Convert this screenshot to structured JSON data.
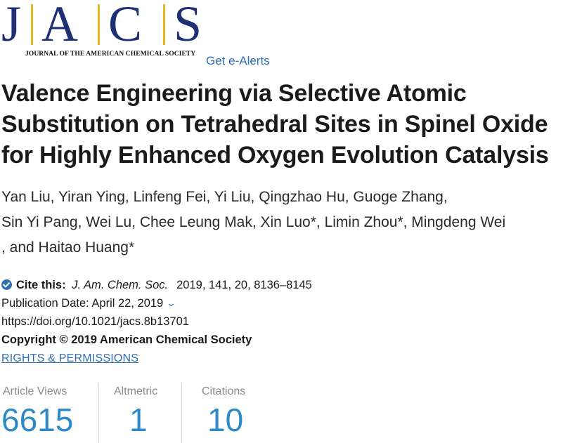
{
  "masthead": {
    "logo_letters": [
      "J",
      "A",
      "C",
      "S"
    ],
    "logo_subtitle": "JOURNAL OF THE AMERICAN CHEMICAL SOCIETY",
    "alerts_label": "Get e-Alerts",
    "colors": {
      "brand_navy": "#1f2f74",
      "brand_gold": "#e5b626",
      "link_blue": "#2c6fb4"
    }
  },
  "article": {
    "title_lines": [
      "Valence Engineering via Selective Atomic",
      "Substitution on Tetrahedral Sites in Spinel Oxide",
      "for Highly Enhanced Oxygen Evolution Catalysis"
    ],
    "author_lines": [
      "Yan Liu, Yiran Ying, Linfeng Fei, Yi Liu, Qingzhao Hu, Guoge Zhang,",
      "Sin Yi Pang, Wei Lu, Chee Leung Mak, Xin Luo*, Limin Zhou*, Mingdeng Wei",
      ", and Haitao Huang*"
    ]
  },
  "meta": {
    "cite_label": "Cite this:",
    "journal_abbrev": "J. Am. Chem. Soc.",
    "citation_details": "2019, 141, 20, 8136–8145",
    "publication_date": "Publication Date: April 22, 2019",
    "doi": "https://doi.org/10.1021/jacs.8b13701",
    "copyright": "Copyright © 2019 American Chemical Society",
    "rights_label": "RIGHTS & PERMISSIONS"
  },
  "metrics": [
    {
      "label": "Article Views",
      "value": "6615"
    },
    {
      "label": "Altmetric",
      "value": "1"
    },
    {
      "label": "Citations",
      "value": "10"
    }
  ]
}
